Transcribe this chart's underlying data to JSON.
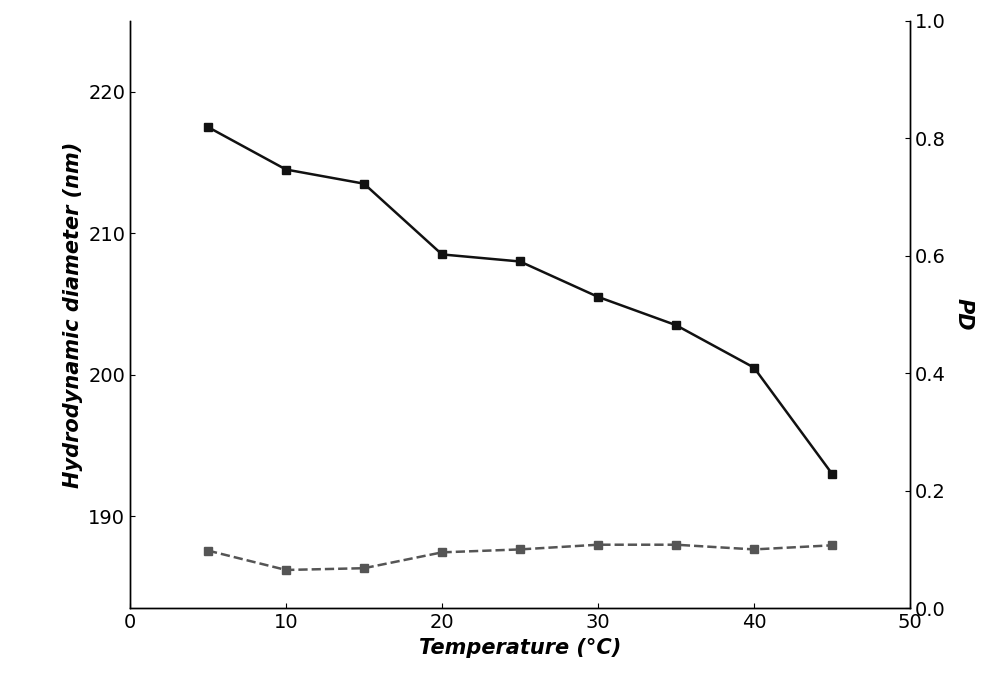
{
  "temp": [
    5,
    10,
    15,
    20,
    25,
    30,
    35,
    40,
    45
  ],
  "diameter": [
    217.5,
    214.5,
    213.5,
    208.5,
    208.0,
    205.5,
    203.5,
    200.5,
    193.0
  ],
  "pd": [
    0.098,
    0.065,
    0.068,
    0.095,
    0.1,
    0.108,
    0.108,
    0.1,
    0.107
  ],
  "diameter_color": "#111111",
  "pd_color": "#555555",
  "line_width": 1.8,
  "marker": "s",
  "marker_size": 6,
  "xlabel": "Temperature (°C)",
  "ylabel_left": "Hydrodynamic diameter (nm)",
  "ylabel_right": "PD",
  "xlim": [
    0,
    50
  ],
  "ylim_left": [
    183.5,
    225.0
  ],
  "ylim_right": [
    0.0,
    1.0
  ],
  "yticks_left": [
    190,
    200,
    210,
    220
  ],
  "yticks_right": [
    0.0,
    0.2,
    0.4,
    0.6,
    0.8,
    1.0
  ],
  "xticks": [
    0,
    10,
    20,
    30,
    40,
    50
  ],
  "xlabel_fontsize": 15,
  "ylabel_fontsize": 15,
  "tick_fontsize": 14,
  "background_color": "#ffffff",
  "pd_linestyle": "--"
}
